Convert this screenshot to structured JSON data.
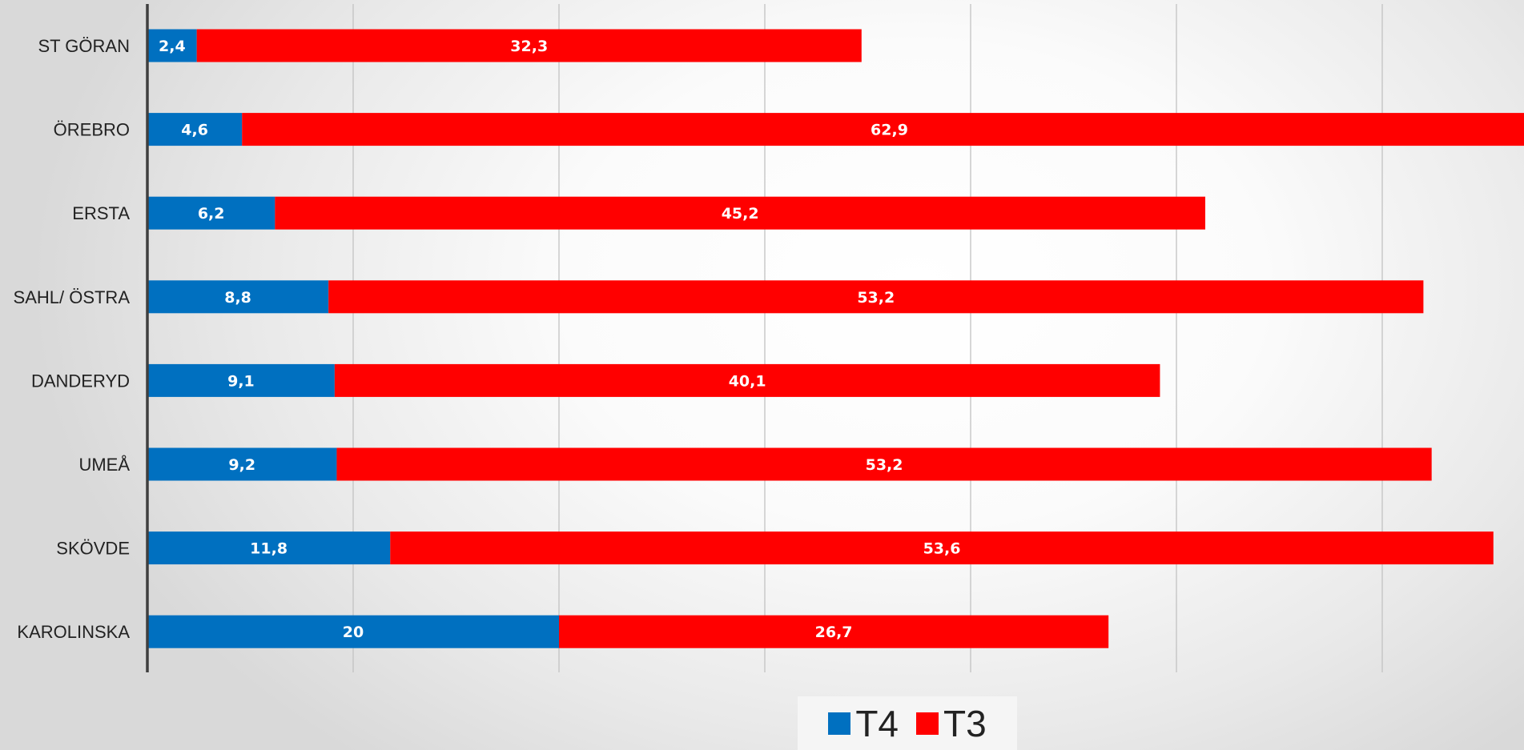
{
  "chart_data": {
    "type": "bar",
    "orientation": "horizontal",
    "stacked": true,
    "categories": [
      "ST GÖRAN",
      "ÖREBRO",
      "ERSTA",
      "SAHL/ ÖSTRA",
      "DANDERYD",
      "UMEÅ",
      "SKÖVDE",
      "KAROLINSKA"
    ],
    "series": [
      {
        "name": "T4",
        "color": "#0070c0",
        "values": [
          2.4,
          4.6,
          6.2,
          8.8,
          9.1,
          9.2,
          11.8,
          20
        ],
        "labels": [
          "2,4",
          "4,6",
          "6,2",
          "8,8",
          "9,1",
          "9,2",
          "11,8",
          "20"
        ]
      },
      {
        "name": "T3",
        "color": "#ff0000",
        "values": [
          32.3,
          62.9,
          45.2,
          53.2,
          40.1,
          53.2,
          53.6,
          26.7
        ],
        "labels": [
          "32,3",
          "62,9",
          "45,2",
          "53,2",
          "40,1",
          "53,2",
          "53,6",
          "26,7"
        ]
      }
    ],
    "xlim": [
      0,
      70
    ],
    "grid": true,
    "legend_position": "bottom-center",
    "xlabel": "",
    "ylabel": ""
  }
}
